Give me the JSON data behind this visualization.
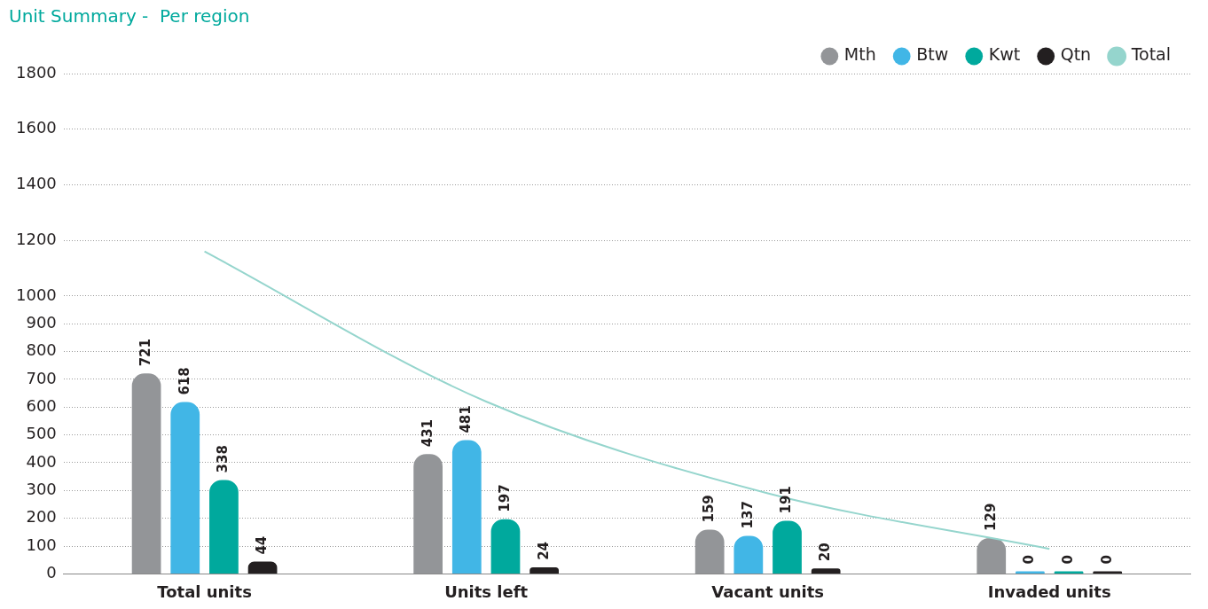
{
  "chart_data": {
    "type": "bar",
    "title": "Unit Summary -  Per region",
    "categories": [
      "Total units",
      "Units left",
      "Vacant units",
      "Invaded units"
    ],
    "series": [
      {
        "name": "Mth",
        "color": "#939598",
        "values": [
          721,
          431,
          159,
          129
        ],
        "value_labels": [
          "721",
          "431",
          "159",
          "129"
        ]
      },
      {
        "name": "Btw",
        "color": "#41b6e6",
        "values": [
          618,
          481,
          137,
          0
        ],
        "value_labels": [
          "618",
          "481",
          "137",
          "0"
        ]
      },
      {
        "name": "Kwt",
        "color": "#00a99d",
        "values": [
          338,
          197,
          191,
          0
        ],
        "value_labels": [
          "338",
          "197",
          "191",
          "0"
        ]
      },
      {
        "name": "Qtn",
        "color": "#231f20",
        "values": [
          44,
          24,
          20,
          0
        ],
        "value_labels": [
          "44",
          "24",
          "20",
          "0"
        ]
      },
      {
        "name": "Total",
        "type": "line",
        "color": "#95d5cd",
        "values": [
          1160,
          620,
          290,
          90
        ]
      }
    ],
    "ylim": [
      0,
      1800
    ],
    "yticks": [
      0,
      100,
      200,
      300,
      400,
      500,
      600,
      700,
      800,
      900,
      1000,
      1200,
      1400,
      1600,
      1800
    ],
    "grid": "y",
    "legend": "top right",
    "marker": "none"
  }
}
